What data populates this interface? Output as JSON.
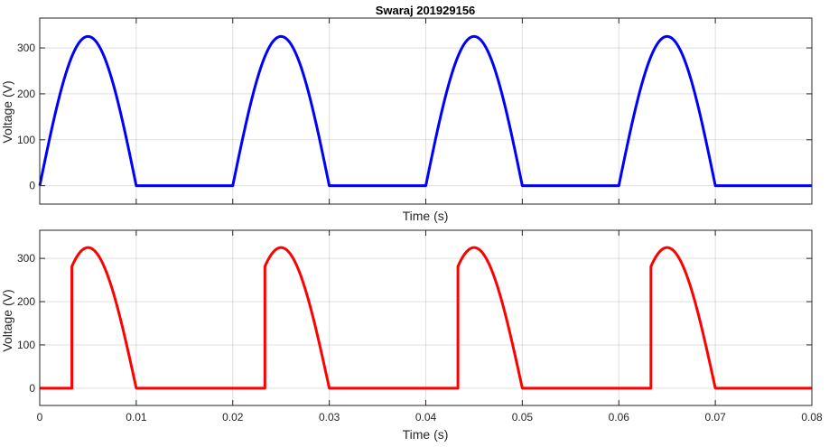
{
  "figure": {
    "title": "Swaraj 201929156"
  },
  "chart_data": [
    {
      "type": "line",
      "title": "Swaraj 201929156",
      "xlabel": "Time (s)",
      "ylabel": "Voltage (V)",
      "xlim": [
        0,
        0.08
      ],
      "ylim": [
        -40,
        365
      ],
      "xticks": [
        0,
        0.01,
        0.02,
        0.03,
        0.04,
        0.05,
        0.06,
        0.07,
        0.08
      ],
      "xtick_labels_shown": false,
      "yticks": [
        0,
        100,
        200,
        300
      ],
      "ytick_labels": [
        "0",
        "100",
        "200",
        "300"
      ],
      "grid": true,
      "series": [
        {
          "color": "#0000ff",
          "amplitude": 325,
          "period": 0.02,
          "firing_time_in_period": 0,
          "conduction_end_in_period": 0.01,
          "x": [
            0,
            0.001,
            0.002,
            0.003,
            0.004,
            0.005,
            0.006,
            0.007,
            0.008,
            0.009,
            0.01,
            0.02,
            0.021,
            0.022,
            0.023,
            0.024,
            0.025,
            0.026,
            0.027,
            0.028,
            0.029,
            0.03,
            0.04,
            0.041,
            0.042,
            0.043,
            0.044,
            0.045,
            0.046,
            0.047,
            0.048,
            0.049,
            0.05,
            0.06,
            0.061,
            0.062,
            0.063,
            0.064,
            0.065,
            0.066,
            0.067,
            0.068,
            0.069,
            0.07,
            0.08
          ],
          "y": [
            0,
            100,
            191,
            263,
            309,
            325,
            309,
            263,
            191,
            100,
            0,
            0,
            100,
            191,
            263,
            309,
            325,
            309,
            263,
            191,
            100,
            0,
            0,
            100,
            191,
            263,
            309,
            325,
            309,
            263,
            191,
            100,
            0,
            0,
            100,
            191,
            263,
            309,
            325,
            309,
            263,
            191,
            100,
            0,
            0
          ]
        }
      ]
    },
    {
      "type": "line",
      "title": "",
      "xlabel": "Time (s)",
      "ylabel": "Voltage (V)",
      "xlim": [
        0,
        0.08
      ],
      "ylim": [
        -40,
        365
      ],
      "xticks": [
        0,
        0.01,
        0.02,
        0.03,
        0.04,
        0.05,
        0.06,
        0.07,
        0.08
      ],
      "xtick_labels": [
        "0",
        "0.01",
        "0.02",
        "0.03",
        "0.04",
        "0.05",
        "0.06",
        "0.07",
        "0.08"
      ],
      "xtick_labels_shown": true,
      "yticks": [
        0,
        100,
        200,
        300
      ],
      "ytick_labels": [
        "0",
        "100",
        "200",
        "300"
      ],
      "grid": true,
      "series": [
        {
          "color": "#ff0000",
          "amplitude": 325,
          "period": 0.02,
          "firing_time_in_period": 0.00333,
          "conduction_end_in_period": 0.01,
          "x": [
            0,
            0.00333,
            0.00333,
            0.004,
            0.005,
            0.006,
            0.007,
            0.008,
            0.009,
            0.01,
            0.02333,
            0.02333,
            0.024,
            0.025,
            0.026,
            0.027,
            0.028,
            0.029,
            0.03,
            0.04333,
            0.04333,
            0.044,
            0.045,
            0.046,
            0.047,
            0.048,
            0.049,
            0.05,
            0.06333,
            0.06333,
            0.064,
            0.065,
            0.066,
            0.067,
            0.068,
            0.069,
            0.07,
            0.08
          ],
          "y": [
            0,
            0,
            281,
            309,
            325,
            309,
            263,
            191,
            100,
            0,
            0,
            281,
            309,
            325,
            309,
            263,
            191,
            100,
            0,
            0,
            281,
            309,
            325,
            309,
            263,
            191,
            100,
            0,
            0,
            281,
            309,
            325,
            309,
            263,
            191,
            100,
            0,
            0
          ]
        }
      ]
    }
  ]
}
